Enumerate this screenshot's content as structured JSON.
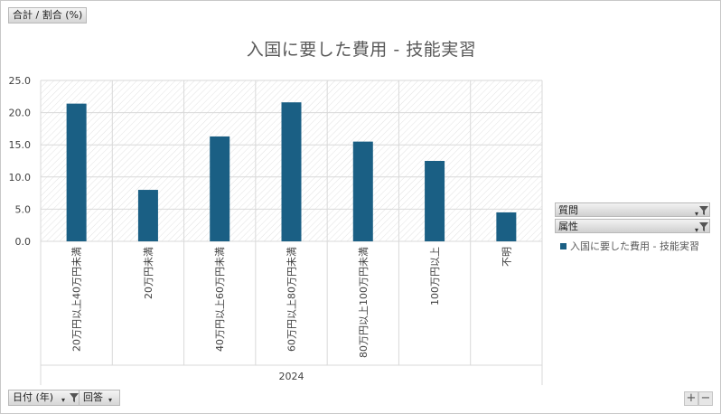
{
  "value_field": {
    "label": "合計 / 割合 (%)"
  },
  "date_field": {
    "label": "日付 (年)"
  },
  "answer_field": {
    "label": "回答"
  },
  "panel": {
    "question_label": "質問",
    "attribute_label": "属性"
  },
  "zoom": {
    "in": "+",
    "out": "−"
  },
  "colors": {
    "bar": "#1a5f84",
    "grid": "#d9d9d9",
    "hatch": "#e2e2e2"
  },
  "chart_data": {
    "type": "bar",
    "title": "入国に要した費用 - 技能実習",
    "categories": [
      "20万円以上40万円未満",
      "20万円未満",
      "40万円以上60万円未満",
      "60万円以上80万円未満",
      "80万円以上100万円未満",
      "100万円以上",
      "不明"
    ],
    "group_label": "2024",
    "series": [
      {
        "name": "入国に要した費用 - 技能実習",
        "values": [
          21.4,
          8.0,
          16.3,
          21.6,
          15.5,
          12.5,
          4.5
        ]
      }
    ],
    "ylim": [
      0,
      25
    ],
    "yticks": [
      "0.0",
      "5.0",
      "10.0",
      "15.0",
      "20.0",
      "25.0"
    ],
    "grid": true,
    "legend_position": "right"
  }
}
